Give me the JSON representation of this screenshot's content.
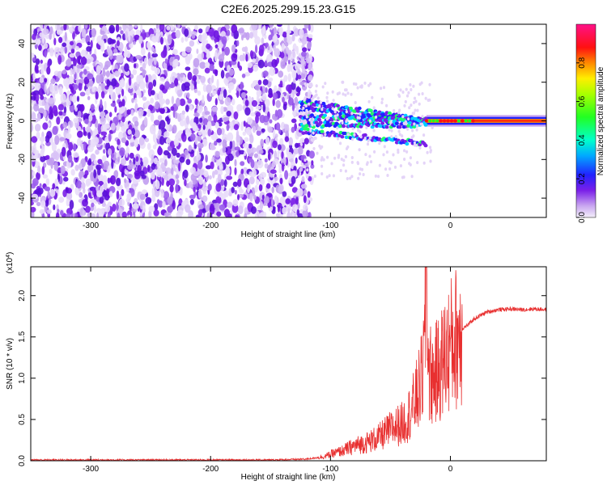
{
  "title": "C2E6.2025.299.15.23.G15",
  "chart_data": [
    {
      "type": "heatmap",
      "xlabel": "Height of straight line (km)",
      "ylabel": "Frequency (Hz)",
      "xlim": [
        -350,
        80
      ],
      "ylim": [
        -50,
        50
      ],
      "xticks": [
        "-300",
        "-200",
        "-100",
        "0"
      ],
      "xtick_values": [
        -300,
        -200,
        -100,
        0
      ],
      "yticks": [
        "-40",
        "-20",
        "0",
        "20",
        "40"
      ],
      "ytick_values": [
        -40,
        -20,
        0,
        20,
        40
      ],
      "colorbar": {
        "label": "Normalized spectral amplitude",
        "range": [
          0,
          1
        ],
        "ticks": [
          "0.0",
          "0.2",
          "0.4",
          "0.6",
          "0.8"
        ],
        "tick_values": [
          0.0,
          0.2,
          0.4,
          0.6,
          0.8
        ]
      },
      "features": {
        "noise_region_x": [
          -350,
          -115
        ],
        "signal_start_x": -125,
        "tone_frequency_hz": 0
      }
    },
    {
      "type": "line",
      "xlabel": "Height of straight line (km)",
      "ylabel": "SNR (10 * v/v)",
      "y_multiplier": "(x10",
      "y_multiplier_exp": "4",
      "y_multiplier_close": ")",
      "xlim": [
        -350,
        80
      ],
      "ylim": [
        0,
        2.35
      ],
      "xticks": [
        "-300",
        "-200",
        "-100",
        "0"
      ],
      "xtick_values": [
        -300,
        -200,
        -100,
        0
      ],
      "yticks": [
        "0.0",
        "0.5",
        "1.0",
        "1.5",
        "2.0"
      ],
      "ytick_values": [
        0.0,
        0.5,
        1.0,
        1.5,
        2.0
      ],
      "series": [
        {
          "color": "#e83030",
          "x": [
            -350,
            -300,
            -250,
            -200,
            -150,
            -120,
            -105,
            -100,
            -90,
            -80,
            -70,
            -60,
            -55,
            -50,
            -45,
            -40,
            -35,
            -30,
            -25,
            -22,
            -20,
            -18,
            -15,
            -10,
            -5,
            0,
            5,
            10,
            15,
            20,
            25,
            30,
            40,
            50,
            60,
            70,
            80
          ],
          "y": [
            0.01,
            0.01,
            0.01,
            0.01,
            0.01,
            0.02,
            0.05,
            0.08,
            0.12,
            0.18,
            0.22,
            0.28,
            0.33,
            0.38,
            0.42,
            0.45,
            0.55,
            0.7,
            0.9,
            1.2,
            2.35,
            1.1,
            1.0,
            1.1,
            1.25,
            1.4,
            1.5,
            1.6,
            1.65,
            1.72,
            1.76,
            1.8,
            1.83,
            1.84,
            1.83,
            1.84,
            1.83
          ]
        }
      ]
    }
  ]
}
